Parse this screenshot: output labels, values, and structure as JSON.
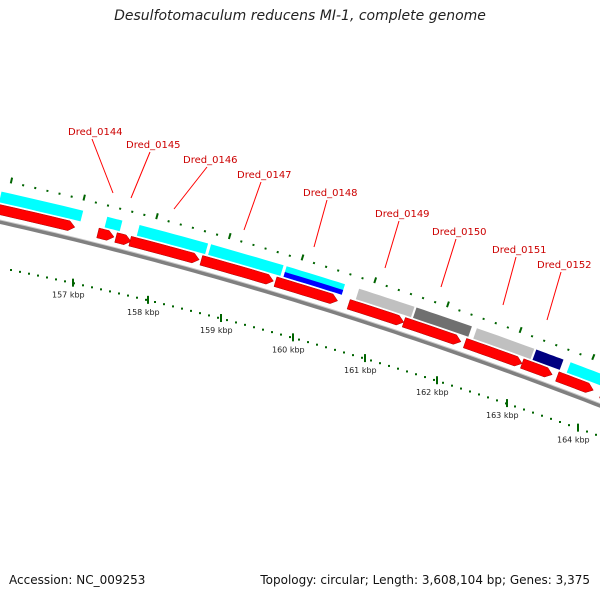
{
  "title": "Desulfotomaculum reducens MI-1, complete genome",
  "footer": {
    "accession": "Accession: NC_009253",
    "summary": "Topology: circular; Length: 3,608,104 bp; Genes: 3,375"
  },
  "genes": [
    {
      "label": "Dred_0144"
    },
    {
      "label": "Dred_0145"
    },
    {
      "label": "Dred_0146"
    },
    {
      "label": "Dred_0147"
    },
    {
      "label": "Dred_0148"
    },
    {
      "label": "Dred_0149"
    },
    {
      "label": "Dred_0150"
    },
    {
      "label": "Dred_0151"
    },
    {
      "label": "Dred_0152"
    }
  ],
  "scale_labels": [
    "157 kbp",
    "158 kbp",
    "159 kbp",
    "160 kbp",
    "161 kbp",
    "162 kbp",
    "163 kbp",
    "164 kbp"
  ],
  "colors": {
    "cds": "#ff0000",
    "cog_cyan": "#00ffff",
    "cog_blue": "#0000ff",
    "cog_navy": "#000080",
    "cog_lightgray": "#c0c0c0",
    "cog_darkgray": "#707070",
    "backbone": "#808080",
    "gc_tick": "#006400",
    "label": "#cc0000"
  }
}
